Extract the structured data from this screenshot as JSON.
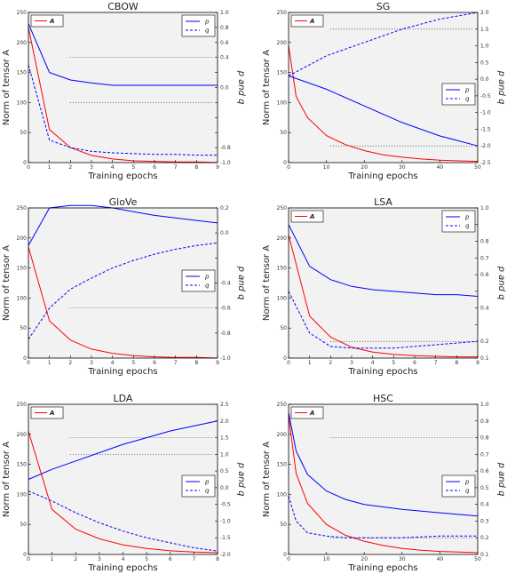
{
  "chart_data": [
    {
      "type": "line",
      "title": "CBOW",
      "xlabel": "Training epochs",
      "ylabel": "Norm of tensor A",
      "y2label": "p and q",
      "xlim": [
        0,
        9
      ],
      "ylim": [
        0,
        250
      ],
      "y2lim": [
        -1.0,
        1.0
      ],
      "xticks": [
        "0",
        "1",
        "2",
        "3",
        "4",
        "5",
        "6",
        "7",
        "8",
        "9"
      ],
      "yticks": [
        "0",
        "50",
        "100",
        "150",
        "200",
        "250"
      ],
      "y2ticks": [
        "-1.0",
        "-0.8",
        "-0.6",
        "-0.4",
        "-0.2",
        "0.0",
        "0.2",
        "0.4",
        "0.6",
        "0.8",
        "1.0"
      ],
      "y2ticks_shown": [
        "-1.0",
        "-0.8",
        "0.0",
        "0.4",
        "0.6",
        "0.8",
        "1.0"
      ],
      "hlines_y2": [
        -0.2,
        0.4
      ],
      "legend_left": [
        "A"
      ],
      "legend_right": [
        "p",
        "q"
      ],
      "series": [
        {
          "name": "A",
          "axis": "left",
          "style": "solid",
          "color": "#ff0000",
          "x": [
            0,
            1,
            2,
            3,
            4,
            5,
            6,
            7,
            8,
            9
          ],
          "values": [
            225,
            55,
            25,
            12,
            6,
            3,
            2,
            1,
            1,
            0
          ]
        },
        {
          "name": "p",
          "axis": "right",
          "style": "solid",
          "color": "#0000ff",
          "x": [
            0,
            1,
            2,
            3,
            4,
            5,
            6,
            7,
            8,
            9
          ],
          "values": [
            0.85,
            0.2,
            0.1,
            0.06,
            0.03,
            0.03,
            0.03,
            0.03,
            0.03,
            0.03
          ]
        },
        {
          "name": "q",
          "axis": "right",
          "style": "dashed",
          "color": "#0000ff",
          "x": [
            0,
            1,
            2,
            3,
            4,
            5,
            6,
            7,
            8,
            9
          ],
          "values": [
            0.3,
            -0.7,
            -0.8,
            -0.85,
            -0.87,
            -0.88,
            -0.89,
            -0.89,
            -0.9,
            -0.9
          ]
        }
      ]
    },
    {
      "type": "line",
      "title": "SG",
      "xlabel": "Training epochs",
      "ylabel": "Norm of tensor A",
      "y2label": "p and q",
      "xlim": [
        0,
        50
      ],
      "ylim": [
        0,
        250
      ],
      "y2lim": [
        -2.5,
        2.0
      ],
      "xticks": [
        "0",
        "10",
        "20",
        "30",
        "40",
        "50"
      ],
      "yticks": [
        "0",
        "50",
        "100",
        "150",
        "200",
        "250"
      ],
      "y2ticks": [
        "-2.5",
        "-2.0",
        "-1.5",
        "-1.0",
        "-0.5",
        "0.0",
        "0.5",
        "1.0",
        "1.5",
        "2.0"
      ],
      "y2ticks_shown": [
        "-2.5",
        "-2.0",
        "-1.5",
        "-1.0",
        "-0.5",
        "0.0",
        "0.5",
        "1.0",
        "1.5",
        "2.0"
      ],
      "hlines_y2": [
        -2.0,
        1.5
      ],
      "legend_left": [
        "A"
      ],
      "legend_right": [
        "p",
        "q"
      ],
      "series": [
        {
          "name": "A",
          "axis": "left",
          "style": "solid",
          "color": "#ff0000",
          "x": [
            0,
            2,
            5,
            10,
            15,
            20,
            25,
            30,
            35,
            40,
            45,
            50
          ],
          "values": [
            195,
            110,
            75,
            45,
            30,
            20,
            13,
            9,
            6,
            4,
            3,
            2
          ]
        },
        {
          "name": "p",
          "axis": "right",
          "style": "solid",
          "color": "#0000ff",
          "x": [
            0,
            5,
            10,
            20,
            30,
            40,
            50
          ],
          "values": [
            0.1,
            -0.1,
            -0.3,
            -0.8,
            -1.3,
            -1.7,
            -2.0
          ]
        },
        {
          "name": "q",
          "axis": "right",
          "style": "dashed",
          "color": "#0000ff",
          "x": [
            0,
            5,
            10,
            20,
            30,
            40,
            50
          ],
          "values": [
            0.1,
            0.4,
            0.7,
            1.1,
            1.5,
            1.8,
            2.0
          ]
        }
      ]
    },
    {
      "type": "line",
      "title": "GloVe",
      "xlabel": "Training epochs",
      "ylabel": "Norm of tensor A",
      "y2label": "p and q",
      "xlim": [
        0,
        9
      ],
      "ylim": [
        0,
        250
      ],
      "y2lim": [
        -1.0,
        0.2
      ],
      "xticks": [
        "0",
        "1",
        "2",
        "3",
        "4",
        "5",
        "6",
        "7",
        "8",
        "9"
      ],
      "yticks": [
        "0",
        "50",
        "100",
        "150",
        "200",
        "250"
      ],
      "y2ticks": [
        "-1.0",
        "-0.8",
        "-0.6",
        "-0.4",
        "-0.2",
        "0.0",
        "0.2"
      ],
      "y2ticks_shown": [
        "-1.0",
        "-0.8",
        "-0.6",
        "-0.4",
        "0.0",
        "0.2"
      ],
      "hlines_y2": [
        -0.6
      ],
      "legend_left": [],
      "legend_right": [
        "p",
        "q"
      ],
      "series": [
        {
          "name": "A",
          "axis": "left",
          "style": "solid",
          "color": "#ff0000",
          "x": [
            0,
            1,
            2,
            3,
            4,
            5,
            6,
            7,
            8,
            9
          ],
          "values": [
            185,
            62,
            30,
            15,
            8,
            4,
            2,
            1,
            1,
            0
          ]
        },
        {
          "name": "p",
          "axis": "right",
          "style": "solid",
          "color": "#0000ff",
          "x": [
            0,
            1,
            2,
            3,
            4,
            5,
            6,
            7,
            8,
            9
          ],
          "values": [
            -0.1,
            0.2,
            0.22,
            0.22,
            0.2,
            0.17,
            0.14,
            0.12,
            0.1,
            0.08
          ]
        },
        {
          "name": "q",
          "axis": "right",
          "style": "dashed",
          "color": "#0000ff",
          "x": [
            0,
            1,
            2,
            3,
            4,
            5,
            6,
            7,
            8,
            9
          ],
          "values": [
            -0.85,
            -0.6,
            -0.45,
            -0.36,
            -0.28,
            -0.22,
            -0.17,
            -0.13,
            -0.1,
            -0.08
          ]
        }
      ]
    },
    {
      "type": "line",
      "title": "LSA",
      "xlabel": "Training epochs",
      "ylabel": "Norm of tensor A",
      "y2label": "p and q",
      "xlim": [
        0,
        9
      ],
      "ylim": [
        0,
        250
      ],
      "y2lim": [
        0.1,
        1.0
      ],
      "xticks": [
        "0",
        "1",
        "2",
        "3",
        "4",
        "5",
        "6",
        "7",
        "8",
        "9"
      ],
      "yticks": [
        "0",
        "50",
        "100",
        "150",
        "200",
        "250"
      ],
      "y2ticks": [
        "0.1",
        "0.2",
        "0.3",
        "0.4",
        "0.5",
        "0.6",
        "0.7",
        "0.8",
        "0.9",
        "1.0"
      ],
      "y2ticks_shown": [
        "0.1",
        "0.2",
        "0.4",
        "0.6",
        "0.7",
        "0.8",
        "1.0"
      ],
      "hlines_y2": [
        0.2
      ],
      "legend_left": [
        "A"
      ],
      "legend_right": [
        "p",
        "q"
      ],
      "series": [
        {
          "name": "A",
          "axis": "left",
          "style": "solid",
          "color": "#ff0000",
          "x": [
            0,
            1,
            2,
            3,
            4,
            5,
            6,
            7,
            8,
            9
          ],
          "values": [
            205,
            70,
            35,
            18,
            10,
            6,
            4,
            3,
            2,
            2
          ]
        },
        {
          "name": "p",
          "axis": "right",
          "style": "solid",
          "color": "#0000ff",
          "x": [
            0,
            1,
            2,
            3,
            4,
            5,
            6,
            7,
            8,
            9
          ],
          "values": [
            0.9,
            0.65,
            0.57,
            0.53,
            0.51,
            0.5,
            0.49,
            0.48,
            0.48,
            0.47
          ]
        },
        {
          "name": "q",
          "axis": "right",
          "style": "dashed",
          "color": "#0000ff",
          "x": [
            0,
            1,
            2,
            3,
            4,
            5,
            6,
            7,
            8,
            9
          ],
          "values": [
            0.5,
            0.25,
            0.17,
            0.16,
            0.16,
            0.16,
            0.17,
            0.18,
            0.19,
            0.2
          ]
        }
      ]
    },
    {
      "type": "line",
      "title": "LDA",
      "xlabel": "Training epochs",
      "ylabel": "Norm of tensor A",
      "y2label": "p and q",
      "xlim": [
        0,
        8
      ],
      "ylim": [
        0,
        250
      ],
      "y2lim": [
        -2.0,
        2.5
      ],
      "xticks": [
        "0",
        "1",
        "2",
        "3",
        "4",
        "5",
        "6",
        "7",
        "8"
      ],
      "yticks": [
        "0",
        "50",
        "100",
        "150",
        "200",
        "250"
      ],
      "y2ticks": [
        "-2.0",
        "-1.5",
        "-1.0",
        "-0.5",
        "0.0",
        "0.5",
        "1.0",
        "1.5",
        "2.0",
        "2.5"
      ],
      "y2ticks_shown": [
        "-2.0",
        "-1.5",
        "-1.0",
        "-0.5",
        "0.0",
        "0.5",
        "1.0",
        "1.5",
        "2.0",
        "2.5"
      ],
      "hlines_y2": [
        1.0,
        1.5
      ],
      "legend_left": [
        "A"
      ],
      "legend_right": [
        "p",
        "q"
      ],
      "series": [
        {
          "name": "A",
          "axis": "left",
          "style": "solid",
          "color": "#ff0000",
          "x": [
            0,
            1,
            2,
            3,
            4,
            5,
            6,
            7,
            8
          ],
          "values": [
            205,
            75,
            42,
            26,
            16,
            10,
            6,
            4,
            3
          ]
        },
        {
          "name": "p",
          "axis": "right",
          "style": "solid",
          "color": "#0000ff",
          "x": [
            0,
            1,
            2,
            3,
            4,
            5,
            6,
            7,
            8
          ],
          "values": [
            0.25,
            0.55,
            0.8,
            1.05,
            1.3,
            1.5,
            1.7,
            1.85,
            2.0
          ]
        },
        {
          "name": "q",
          "axis": "right",
          "style": "dashed",
          "color": "#0000ff",
          "x": [
            0,
            1,
            2,
            3,
            4,
            5,
            6,
            7,
            8
          ],
          "values": [
            -0.1,
            -0.4,
            -0.75,
            -1.05,
            -1.3,
            -1.5,
            -1.65,
            -1.8,
            -1.9
          ]
        }
      ]
    },
    {
      "type": "line",
      "title": "HSC",
      "xlabel": "Training epochs",
      "ylabel": "Norm of tensor A",
      "y2label": "p and q",
      "xlim": [
        0,
        50
      ],
      "ylim": [
        0,
        250
      ],
      "y2lim": [
        0.1,
        1.0
      ],
      "xticks": [
        "0",
        "10",
        "20",
        "30",
        "40",
        "50"
      ],
      "yticks": [
        "0",
        "50",
        "100",
        "150",
        "200",
        "250"
      ],
      "y2ticks": [
        "0.1",
        "0.2",
        "0.3",
        "0.4",
        "0.5",
        "0.6",
        "0.7",
        "0.8",
        "0.9",
        "1.0"
      ],
      "y2ticks_shown": [
        "0.1",
        "0.2",
        "0.3",
        "0.4",
        "0.5",
        "0.6",
        "0.7",
        "0.8",
        "0.9",
        "1.0"
      ],
      "hlines_y2": [
        0.2,
        0.8
      ],
      "legend_left": [
        "A"
      ],
      "legend_right": [
        "p",
        "q"
      ],
      "series": [
        {
          "name": "A",
          "axis": "left",
          "style": "solid",
          "color": "#ff0000",
          "x": [
            0,
            2,
            5,
            10,
            15,
            20,
            25,
            30,
            35,
            40,
            45,
            50
          ],
          "values": [
            230,
            135,
            85,
            50,
            32,
            22,
            15,
            10,
            7,
            5,
            4,
            3
          ]
        },
        {
          "name": "p",
          "axis": "right",
          "style": "solid",
          "color": "#0000ff",
          "x": [
            0,
            2,
            5,
            10,
            15,
            20,
            30,
            40,
            50
          ],
          "values": [
            0.95,
            0.72,
            0.58,
            0.48,
            0.43,
            0.4,
            0.37,
            0.35,
            0.33
          ]
        },
        {
          "name": "q",
          "axis": "right",
          "style": "dashed",
          "color": "#0000ff",
          "x": [
            0,
            2,
            5,
            10,
            15,
            20,
            30,
            40,
            50
          ],
          "values": [
            0.45,
            0.3,
            0.23,
            0.21,
            0.2,
            0.2,
            0.2,
            0.21,
            0.21
          ]
        }
      ]
    }
  ]
}
